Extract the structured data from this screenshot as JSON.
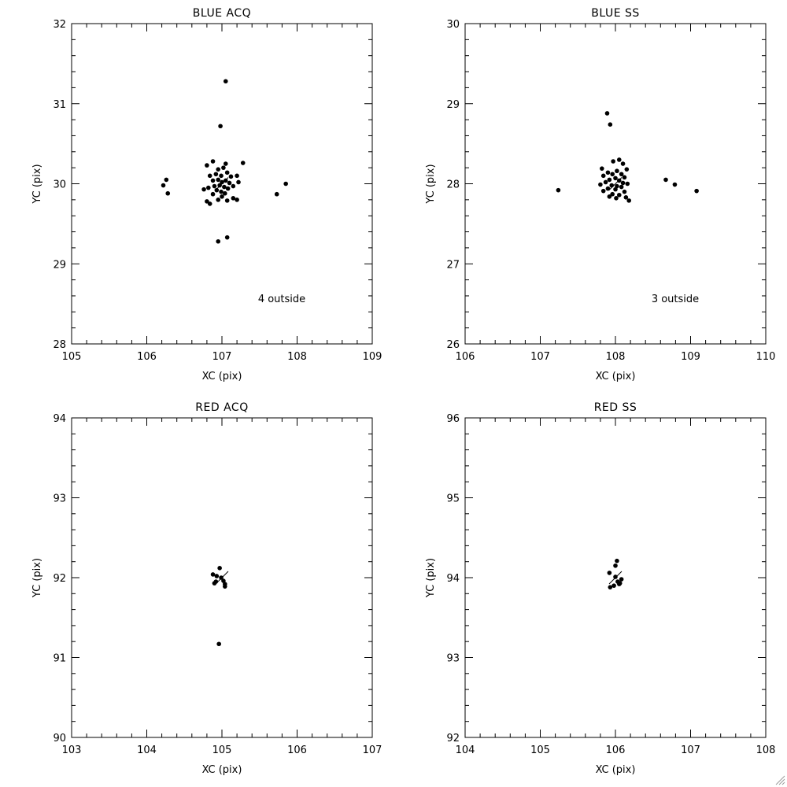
{
  "chart_data": [
    {
      "type": "scatter",
      "title": "BLUE ACQ",
      "xlabel": "XC (pix)",
      "ylabel": "YC (pix)",
      "xlim": [
        105,
        109
      ],
      "ylim": [
        28,
        32
      ],
      "xticks": [
        105,
        106,
        107,
        108,
        109
      ],
      "yticks": [
        28,
        29,
        30,
        31,
        32
      ],
      "annotation": "4 outside",
      "grid": false,
      "center_marker": [
        107.0,
        30.0
      ],
      "points": [
        [
          107.05,
          31.28
        ],
        [
          106.98,
          30.72
        ],
        [
          106.26,
          30.05
        ],
        [
          106.22,
          29.98
        ],
        [
          106.28,
          29.88
        ],
        [
          107.85,
          30.0
        ],
        [
          107.73,
          29.87
        ],
        [
          106.95,
          29.28
        ],
        [
          107.07,
          29.33
        ],
        [
          107.28,
          30.26
        ],
        [
          107.05,
          30.25
        ],
        [
          106.88,
          30.28
        ],
        [
          106.8,
          30.23
        ],
        [
          106.95,
          30.18
        ],
        [
          107.02,
          30.2
        ],
        [
          106.92,
          30.12
        ],
        [
          106.99,
          30.1
        ],
        [
          107.07,
          30.14
        ],
        [
          107.12,
          30.09
        ],
        [
          107.2,
          30.1
        ],
        [
          106.84,
          30.1
        ],
        [
          106.88,
          30.04
        ],
        [
          106.95,
          30.05
        ],
        [
          107.0,
          30.02
        ],
        [
          107.05,
          30.04
        ],
        [
          107.1,
          30.01
        ],
        [
          107.15,
          29.97
        ],
        [
          107.22,
          30.02
        ],
        [
          106.82,
          29.95
        ],
        [
          106.76,
          29.93
        ],
        [
          106.9,
          29.97
        ],
        [
          106.97,
          29.98
        ],
        [
          107.03,
          29.96
        ],
        [
          107.08,
          29.94
        ],
        [
          106.93,
          29.92
        ],
        [
          106.99,
          29.9
        ],
        [
          107.04,
          29.88
        ],
        [
          106.88,
          29.87
        ],
        [
          107.0,
          29.84
        ],
        [
          107.15,
          29.82
        ],
        [
          107.2,
          29.8
        ],
        [
          106.8,
          29.78
        ],
        [
          106.84,
          29.75
        ],
        [
          106.95,
          29.8
        ],
        [
          107.07,
          29.79
        ]
      ]
    },
    {
      "type": "scatter",
      "title": "BLUE SS",
      "xlabel": "XC (pix)",
      "ylabel": "YC (pix)",
      "xlim": [
        106,
        110
      ],
      "ylim": [
        26,
        30
      ],
      "xticks": [
        106,
        107,
        108,
        109,
        110
      ],
      "yticks": [
        26,
        27,
        28,
        29,
        30
      ],
      "annotation": "3 outside",
      "grid": false,
      "center_marker": [
        108.0,
        28.0
      ],
      "points": [
        [
          107.89,
          28.88
        ],
        [
          107.93,
          28.74
        ],
        [
          107.24,
          27.92
        ],
        [
          108.67,
          28.05
        ],
        [
          108.79,
          27.99
        ],
        [
          109.08,
          27.91
        ],
        [
          108.05,
          28.3
        ],
        [
          107.97,
          28.28
        ],
        [
          108.1,
          28.25
        ],
        [
          107.82,
          28.19
        ],
        [
          108.15,
          28.18
        ],
        [
          108.02,
          28.16
        ],
        [
          107.9,
          28.14
        ],
        [
          107.96,
          28.12
        ],
        [
          108.08,
          28.12
        ],
        [
          107.84,
          28.1
        ],
        [
          108.12,
          28.08
        ],
        [
          108.0,
          28.07
        ],
        [
          107.92,
          28.05
        ],
        [
          108.05,
          28.04
        ],
        [
          107.87,
          28.02
        ],
        [
          108.1,
          28.01
        ],
        [
          108.16,
          28.0
        ],
        [
          107.8,
          27.99
        ],
        [
          107.95,
          27.98
        ],
        [
          108.02,
          27.97
        ],
        [
          108.08,
          27.96
        ],
        [
          107.9,
          27.94
        ],
        [
          108.0,
          27.93
        ],
        [
          107.84,
          27.91
        ],
        [
          108.12,
          27.9
        ],
        [
          107.96,
          27.87
        ],
        [
          108.05,
          27.86
        ],
        [
          107.92,
          27.84
        ],
        [
          108.14,
          27.83
        ],
        [
          108.18,
          27.79
        ],
        [
          108.01,
          27.82
        ]
      ]
    },
    {
      "type": "scatter",
      "title": "RED ACQ",
      "xlabel": "XC (pix)",
      "ylabel": "YC (pix)",
      "xlim": [
        103,
        107
      ],
      "ylim": [
        90,
        94
      ],
      "xticks": [
        103,
        104,
        105,
        106,
        107
      ],
      "yticks": [
        90,
        91,
        92,
        93,
        94
      ],
      "annotation": "",
      "grid": false,
      "center_marker": [
        105.0,
        92.0
      ],
      "points": [
        [
          104.97,
          92.12
        ],
        [
          104.88,
          92.04
        ],
        [
          104.93,
          92.02
        ],
        [
          104.99,
          92.0
        ],
        [
          104.92,
          91.95
        ],
        [
          104.9,
          91.93
        ],
        [
          105.02,
          91.96
        ],
        [
          105.04,
          91.92
        ],
        [
          105.04,
          91.89
        ],
        [
          104.96,
          91.17
        ]
      ]
    },
    {
      "type": "scatter",
      "title": "RED SS",
      "xlabel": "XC (pix)",
      "ylabel": "YC (pix)",
      "xlim": [
        104,
        108
      ],
      "ylim": [
        92,
        96
      ],
      "xticks": [
        104,
        105,
        106,
        107,
        108
      ],
      "yticks": [
        92,
        93,
        94,
        95,
        96
      ],
      "annotation": "",
      "grid": false,
      "center_marker": [
        106.0,
        94.0
      ],
      "points": [
        [
          106.02,
          94.21
        ],
        [
          106.0,
          94.15
        ],
        [
          105.92,
          94.06
        ],
        [
          106.0,
          94.01
        ],
        [
          106.08,
          93.98
        ],
        [
          106.03,
          93.95
        ],
        [
          106.06,
          93.93
        ],
        [
          105.98,
          93.9
        ],
        [
          105.93,
          93.88
        ],
        [
          106.05,
          93.92
        ]
      ]
    }
  ],
  "colors": {
    "background": "#ffffff",
    "ink": "#000000"
  },
  "window": {
    "resize_grip_icon": "resize-grip-icon"
  }
}
